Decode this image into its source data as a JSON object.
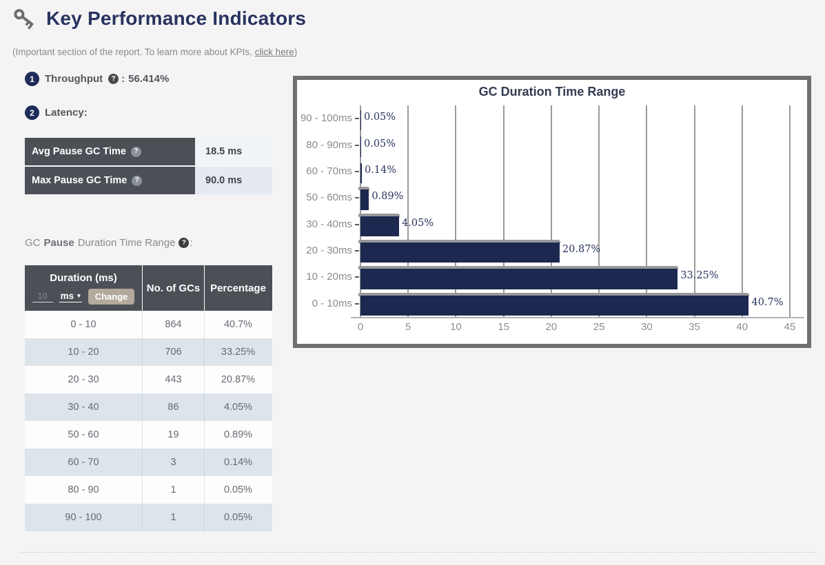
{
  "page": {
    "title": "Key Performance Indicators",
    "subtitle_prefix": "(Important section of the report. To learn more about KPIs, ",
    "subtitle_link": "click here",
    "subtitle_suffix": ")"
  },
  "kpis": {
    "throughput": {
      "num": "1",
      "label": "Throughput",
      "colon": ":",
      "value": "56.414%"
    },
    "latency": {
      "num": "2",
      "label": "Latency:"
    }
  },
  "latency_table": {
    "rows": [
      {
        "label": "Avg Pause GC Time",
        "value": "18.5 ms"
      },
      {
        "label": "Max Pause GC Time",
        "value": "90.0 ms"
      }
    ]
  },
  "gc_range": {
    "label_prefix": "GC",
    "label_bold": "Pause",
    "label_suffix": "Duration Time Range",
    "colon": ":"
  },
  "duration_table": {
    "headers": {
      "duration": "Duration (ms)",
      "gcs": "No. of GCs",
      "percentage": "Percentage"
    },
    "input_value": "10",
    "unit_selected": "ms",
    "caret_icon": "▾",
    "change_button": "Change",
    "rows": [
      {
        "duration": "0 - 10",
        "count": "864",
        "percentage": "40.7%"
      },
      {
        "duration": "10 - 20",
        "count": "706",
        "percentage": "33.25%"
      },
      {
        "duration": "20 - 30",
        "count": "443",
        "percentage": "20.87%"
      },
      {
        "duration": "30 - 40",
        "count": "86",
        "percentage": "4.05%"
      },
      {
        "duration": "50 - 60",
        "count": "19",
        "percentage": "0.89%"
      },
      {
        "duration": "60 - 70",
        "count": "3",
        "percentage": "0.14%"
      },
      {
        "duration": "80 - 90",
        "count": "1",
        "percentage": "0.05%"
      },
      {
        "duration": "90 - 100",
        "count": "1",
        "percentage": "0.05%"
      }
    ]
  },
  "chart_data": {
    "type": "bar",
    "orientation": "horizontal",
    "title": "GC Duration Time Range",
    "categories": [
      "90 - 100ms",
      "80 - 90ms",
      "60 - 70ms",
      "50 - 60ms",
      "30 - 40ms",
      "20 - 30ms",
      "10 - 20ms",
      "0 - 10ms"
    ],
    "values": [
      0.05,
      0.05,
      0.14,
      0.89,
      4.05,
      20.87,
      33.25,
      40.7
    ],
    "labels": [
      "0.05%",
      "0.05%",
      "0.14%",
      "0.89%",
      "4.05%",
      "20.87%",
      "33.25%",
      "40.7%"
    ],
    "x_ticks": [
      0,
      5,
      10,
      15,
      20,
      25,
      30,
      35,
      40,
      45
    ],
    "xlim": [
      0,
      45
    ],
    "xlabel": "",
    "ylabel": "",
    "grid": true,
    "legend": "none",
    "bar_color": "#1d2850",
    "grid_color": "#9a9a9a"
  },
  "colors": {
    "accent_navy": "#28335f",
    "table_header_bg": "#4b5056",
    "row_alt_bg": "#dde4ea",
    "change_button_bg": "#b3a99c",
    "bar_color": "#1d2850"
  }
}
